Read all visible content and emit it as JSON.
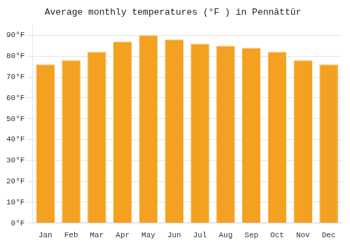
{
  "chart_data": {
    "type": "bar",
    "title": "Average monthly temperatures (°F ) in Pennāttūr",
    "categories": [
      "Jan",
      "Feb",
      "Mar",
      "Apr",
      "May",
      "Jun",
      "Jul",
      "Aug",
      "Sep",
      "Oct",
      "Nov",
      "Dec"
    ],
    "values": [
      76,
      78,
      82,
      87,
      90,
      88,
      86,
      85,
      84,
      82,
      78,
      76
    ],
    "color": "#F4A020",
    "ylim": [
      0,
      95
    ],
    "yticks": [
      {
        "value": 0,
        "label": "0°F"
      },
      {
        "value": 10,
        "label": "10°F"
      },
      {
        "value": 20,
        "label": "20°F"
      },
      {
        "value": 30,
        "label": "30°F"
      },
      {
        "value": 40,
        "label": "40°F"
      },
      {
        "value": 50,
        "label": "50°F"
      },
      {
        "value": 60,
        "label": "60°F"
      },
      {
        "value": 70,
        "label": "70°F"
      },
      {
        "value": 80,
        "label": "80°F"
      },
      {
        "value": 90,
        "label": "90°F"
      }
    ],
    "grid": true
  }
}
